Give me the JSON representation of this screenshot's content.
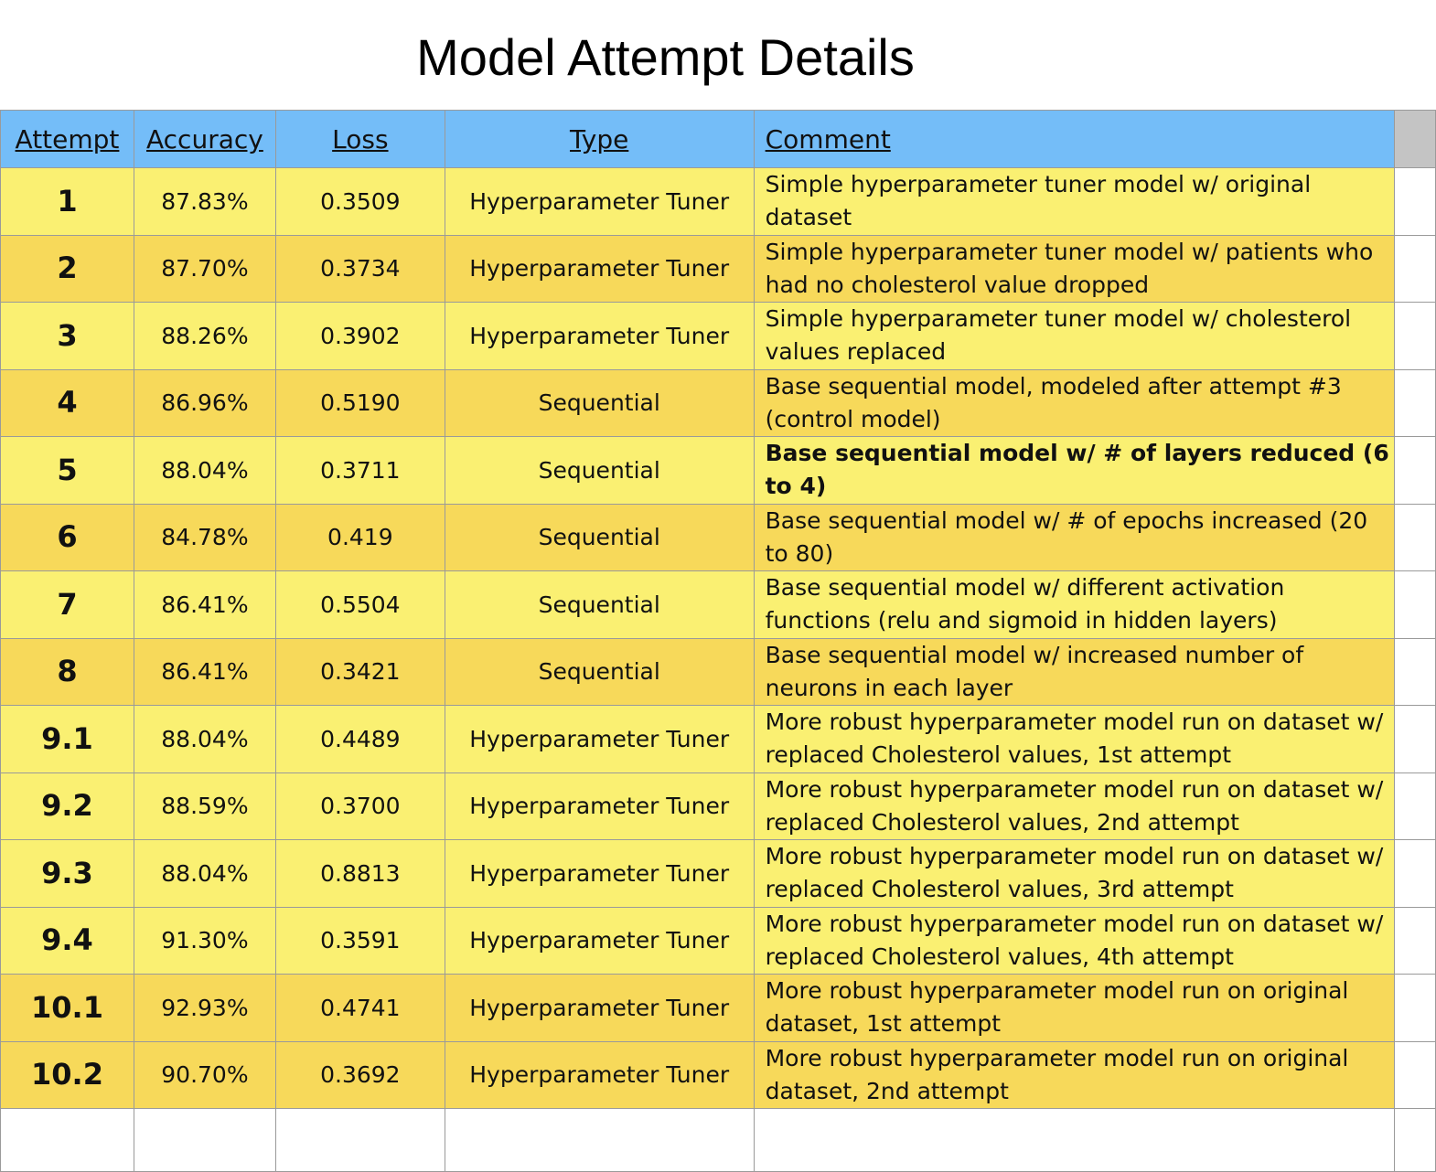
{
  "title": "Model Attempt Details",
  "headers": {
    "attempt": "Attempt",
    "accuracy": "Accuracy",
    "loss": "Loss",
    "type": "Type",
    "comment": "Comment"
  },
  "rows": [
    {
      "attempt": "1",
      "accuracy": "87.83%",
      "loss": "0.3509",
      "type": "Hyperparameter Tuner",
      "comment": "Simple hyperparameter tuner model w/ original dataset"
    },
    {
      "attempt": "2",
      "accuracy": "87.70%",
      "loss": "0.3734",
      "type": "Hyperparameter Tuner",
      "comment": "Simple hyperparameter tuner model w/ patients who had no cholesterol value dropped"
    },
    {
      "attempt": "3",
      "accuracy": "88.26%",
      "loss": "0.3902",
      "type": "Hyperparameter Tuner",
      "comment": "Simple hyperparameter tuner model w/ cholesterol values replaced"
    },
    {
      "attempt": "4",
      "accuracy": "86.96%",
      "loss": "0.5190",
      "type": "Sequential",
      "comment": "Base sequential model, modeled after attempt #3 (control model)"
    },
    {
      "attempt": "5",
      "accuracy": "88.04%",
      "loss": "0.3711",
      "type": "Sequential",
      "comment": "Base sequential model w/ # of layers reduced (6 to 4)"
    },
    {
      "attempt": "6",
      "accuracy": "84.78%",
      "loss": "0.419",
      "type": "Sequential",
      "comment": "Base sequential model w/ # of epochs increased (20 to 80)"
    },
    {
      "attempt": "7",
      "accuracy": "86.41%",
      "loss": "0.5504",
      "type": "Sequential",
      "comment": "Base sequential model  w/ different activation functions (relu and sigmoid in hidden layers)"
    },
    {
      "attempt": "8",
      "accuracy": "86.41%",
      "loss": "0.3421",
      "type": "Sequential",
      "comment": "Base sequential model w/ increased number of neurons in each layer"
    },
    {
      "attempt": "9.1",
      "accuracy": "88.04%",
      "loss": "0.4489",
      "type": "Hyperparameter Tuner",
      "comment": "More robust hyperparameter model run on dataset w/ replaced Cholesterol values, 1st attempt"
    },
    {
      "attempt": "9.2",
      "accuracy": "88.59%",
      "loss": "0.3700",
      "type": "Hyperparameter Tuner",
      "comment": "More robust hyperparameter model run on dataset w/ replaced Cholesterol values, 2nd attempt"
    },
    {
      "attempt": "9.3",
      "accuracy": "88.04%",
      "loss": "0.8813",
      "type": "Hyperparameter Tuner",
      "comment": "More robust hyperparameter model run on dataset w/ replaced Cholesterol values, 3rd attempt"
    },
    {
      "attempt": "9.4",
      "accuracy": "91.30%",
      "loss": "0.3591",
      "type": "Hyperparameter Tuner",
      "comment": "More robust hyperparameter model run on dataset w/ replaced Cholesterol values, 4th attempt"
    },
    {
      "attempt": "10.1",
      "accuracy": "92.93%",
      "loss": "0.4741",
      "type": "Hyperparameter Tuner",
      "comment": "More robust hyperparameter model run on original dataset, 1st attempt"
    },
    {
      "attempt": "10.2",
      "accuracy": "90.70%",
      "loss": "0.3692",
      "type": "Hyperparameter Tuner",
      "comment": "More robust hyperparameter model run on original dataset, 2nd attempt"
    }
  ],
  "colors": {
    "header_bg": "#74bdf8",
    "row_light": "#faf072",
    "row_dark": "#f7d95a",
    "grid": "#9a9a9a"
  }
}
